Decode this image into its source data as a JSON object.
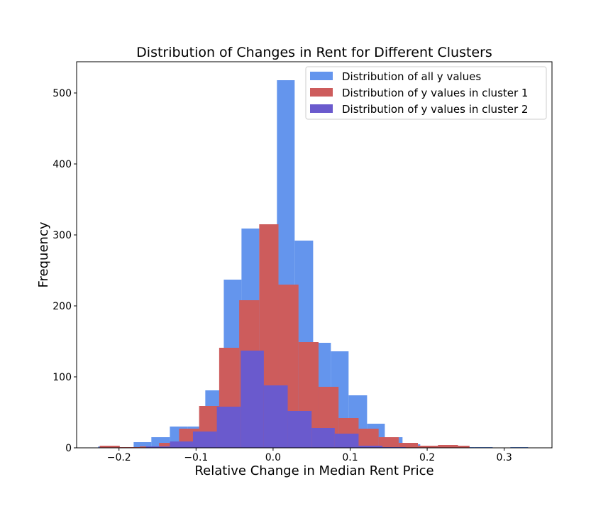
{
  "chart_data": {
    "type": "bar",
    "title": "Distribution of Changes in Rent for Different Clusters",
    "xlabel": "Relative Change in Median Rent Price",
    "ylabel": "Frequency",
    "xlim": [
      -0.255,
      0.362
    ],
    "ylim": [
      0,
      544
    ],
    "xticks": [
      -0.2,
      -0.1,
      0.0,
      0.1,
      0.2,
      0.3
    ],
    "xtick_labels": [
      "−0.2",
      "−0.1",
      "0.0",
      "0.1",
      "0.2",
      "0.3"
    ],
    "yticks": [
      0,
      100,
      200,
      300,
      400,
      500
    ],
    "ytick_labels": [
      "0",
      "100",
      "200",
      "300",
      "400",
      "500"
    ],
    "grid": false,
    "legend_position": "top-right",
    "series": [
      {
        "name": "Distribution of all y values",
        "color": "#6495ED",
        "bins": [
          [
            -0.227,
            -0.204,
            2
          ],
          [
            -0.204,
            -0.181,
            1
          ],
          [
            -0.181,
            -0.158,
            8
          ],
          [
            -0.158,
            -0.134,
            15
          ],
          [
            -0.134,
            -0.111,
            30
          ],
          [
            -0.111,
            -0.088,
            30
          ],
          [
            -0.088,
            -0.064,
            81
          ],
          [
            -0.064,
            -0.041,
            237
          ],
          [
            -0.041,
            -0.018,
            309
          ],
          [
            -0.018,
            0.005,
            309
          ],
          [
            0.005,
            0.028,
            518
          ],
          [
            0.028,
            0.052,
            292
          ],
          [
            0.052,
            0.075,
            148
          ],
          [
            0.075,
            0.098,
            136
          ],
          [
            0.098,
            0.122,
            74
          ],
          [
            0.122,
            0.145,
            34
          ],
          [
            0.145,
            0.168,
            15
          ],
          [
            0.168,
            0.191,
            5
          ],
          [
            0.191,
            0.215,
            3
          ],
          [
            0.215,
            0.238,
            2
          ],
          [
            0.238,
            0.261,
            1
          ],
          [
            0.261,
            0.285,
            1
          ],
          [
            0.285,
            0.308,
            0
          ],
          [
            0.308,
            0.331,
            1
          ]
        ]
      },
      {
        "name": "Distribution of y values in cluster 1",
        "color": "#CD5C5C",
        "bins": [
          [
            -0.225,
            -0.199,
            3
          ],
          [
            -0.199,
            -0.173,
            1
          ],
          [
            -0.173,
            -0.148,
            2
          ],
          [
            -0.148,
            -0.122,
            7
          ],
          [
            -0.122,
            -0.096,
            27
          ],
          [
            -0.096,
            -0.07,
            59
          ],
          [
            -0.07,
            -0.044,
            141
          ],
          [
            -0.044,
            -0.018,
            208
          ],
          [
            -0.018,
            0.007,
            315
          ],
          [
            0.007,
            0.033,
            230
          ],
          [
            0.033,
            0.059,
            149
          ],
          [
            0.059,
            0.085,
            86
          ],
          [
            0.085,
            0.111,
            42
          ],
          [
            0.111,
            0.137,
            27
          ],
          [
            0.137,
            0.163,
            15
          ],
          [
            0.163,
            0.188,
            7
          ],
          [
            0.188,
            0.214,
            3
          ],
          [
            0.214,
            0.24,
            4
          ],
          [
            0.24,
            0.255,
            3
          ]
        ]
      },
      {
        "name": "Distribution of y values in cluster 2",
        "color": "#6A5ACD",
        "bins": [
          [
            -0.165,
            -0.134,
            2
          ],
          [
            -0.134,
            -0.104,
            9
          ],
          [
            -0.104,
            -0.073,
            23
          ],
          [
            -0.073,
            -0.042,
            58
          ],
          [
            -0.042,
            -0.012,
            137
          ],
          [
            -0.012,
            0.019,
            88
          ],
          [
            0.019,
            0.05,
            52
          ],
          [
            0.05,
            0.08,
            28
          ],
          [
            0.08,
            0.111,
            20
          ],
          [
            0.111,
            0.142,
            3
          ],
          [
            0.142,
            0.172,
            1
          ]
        ]
      }
    ]
  }
}
